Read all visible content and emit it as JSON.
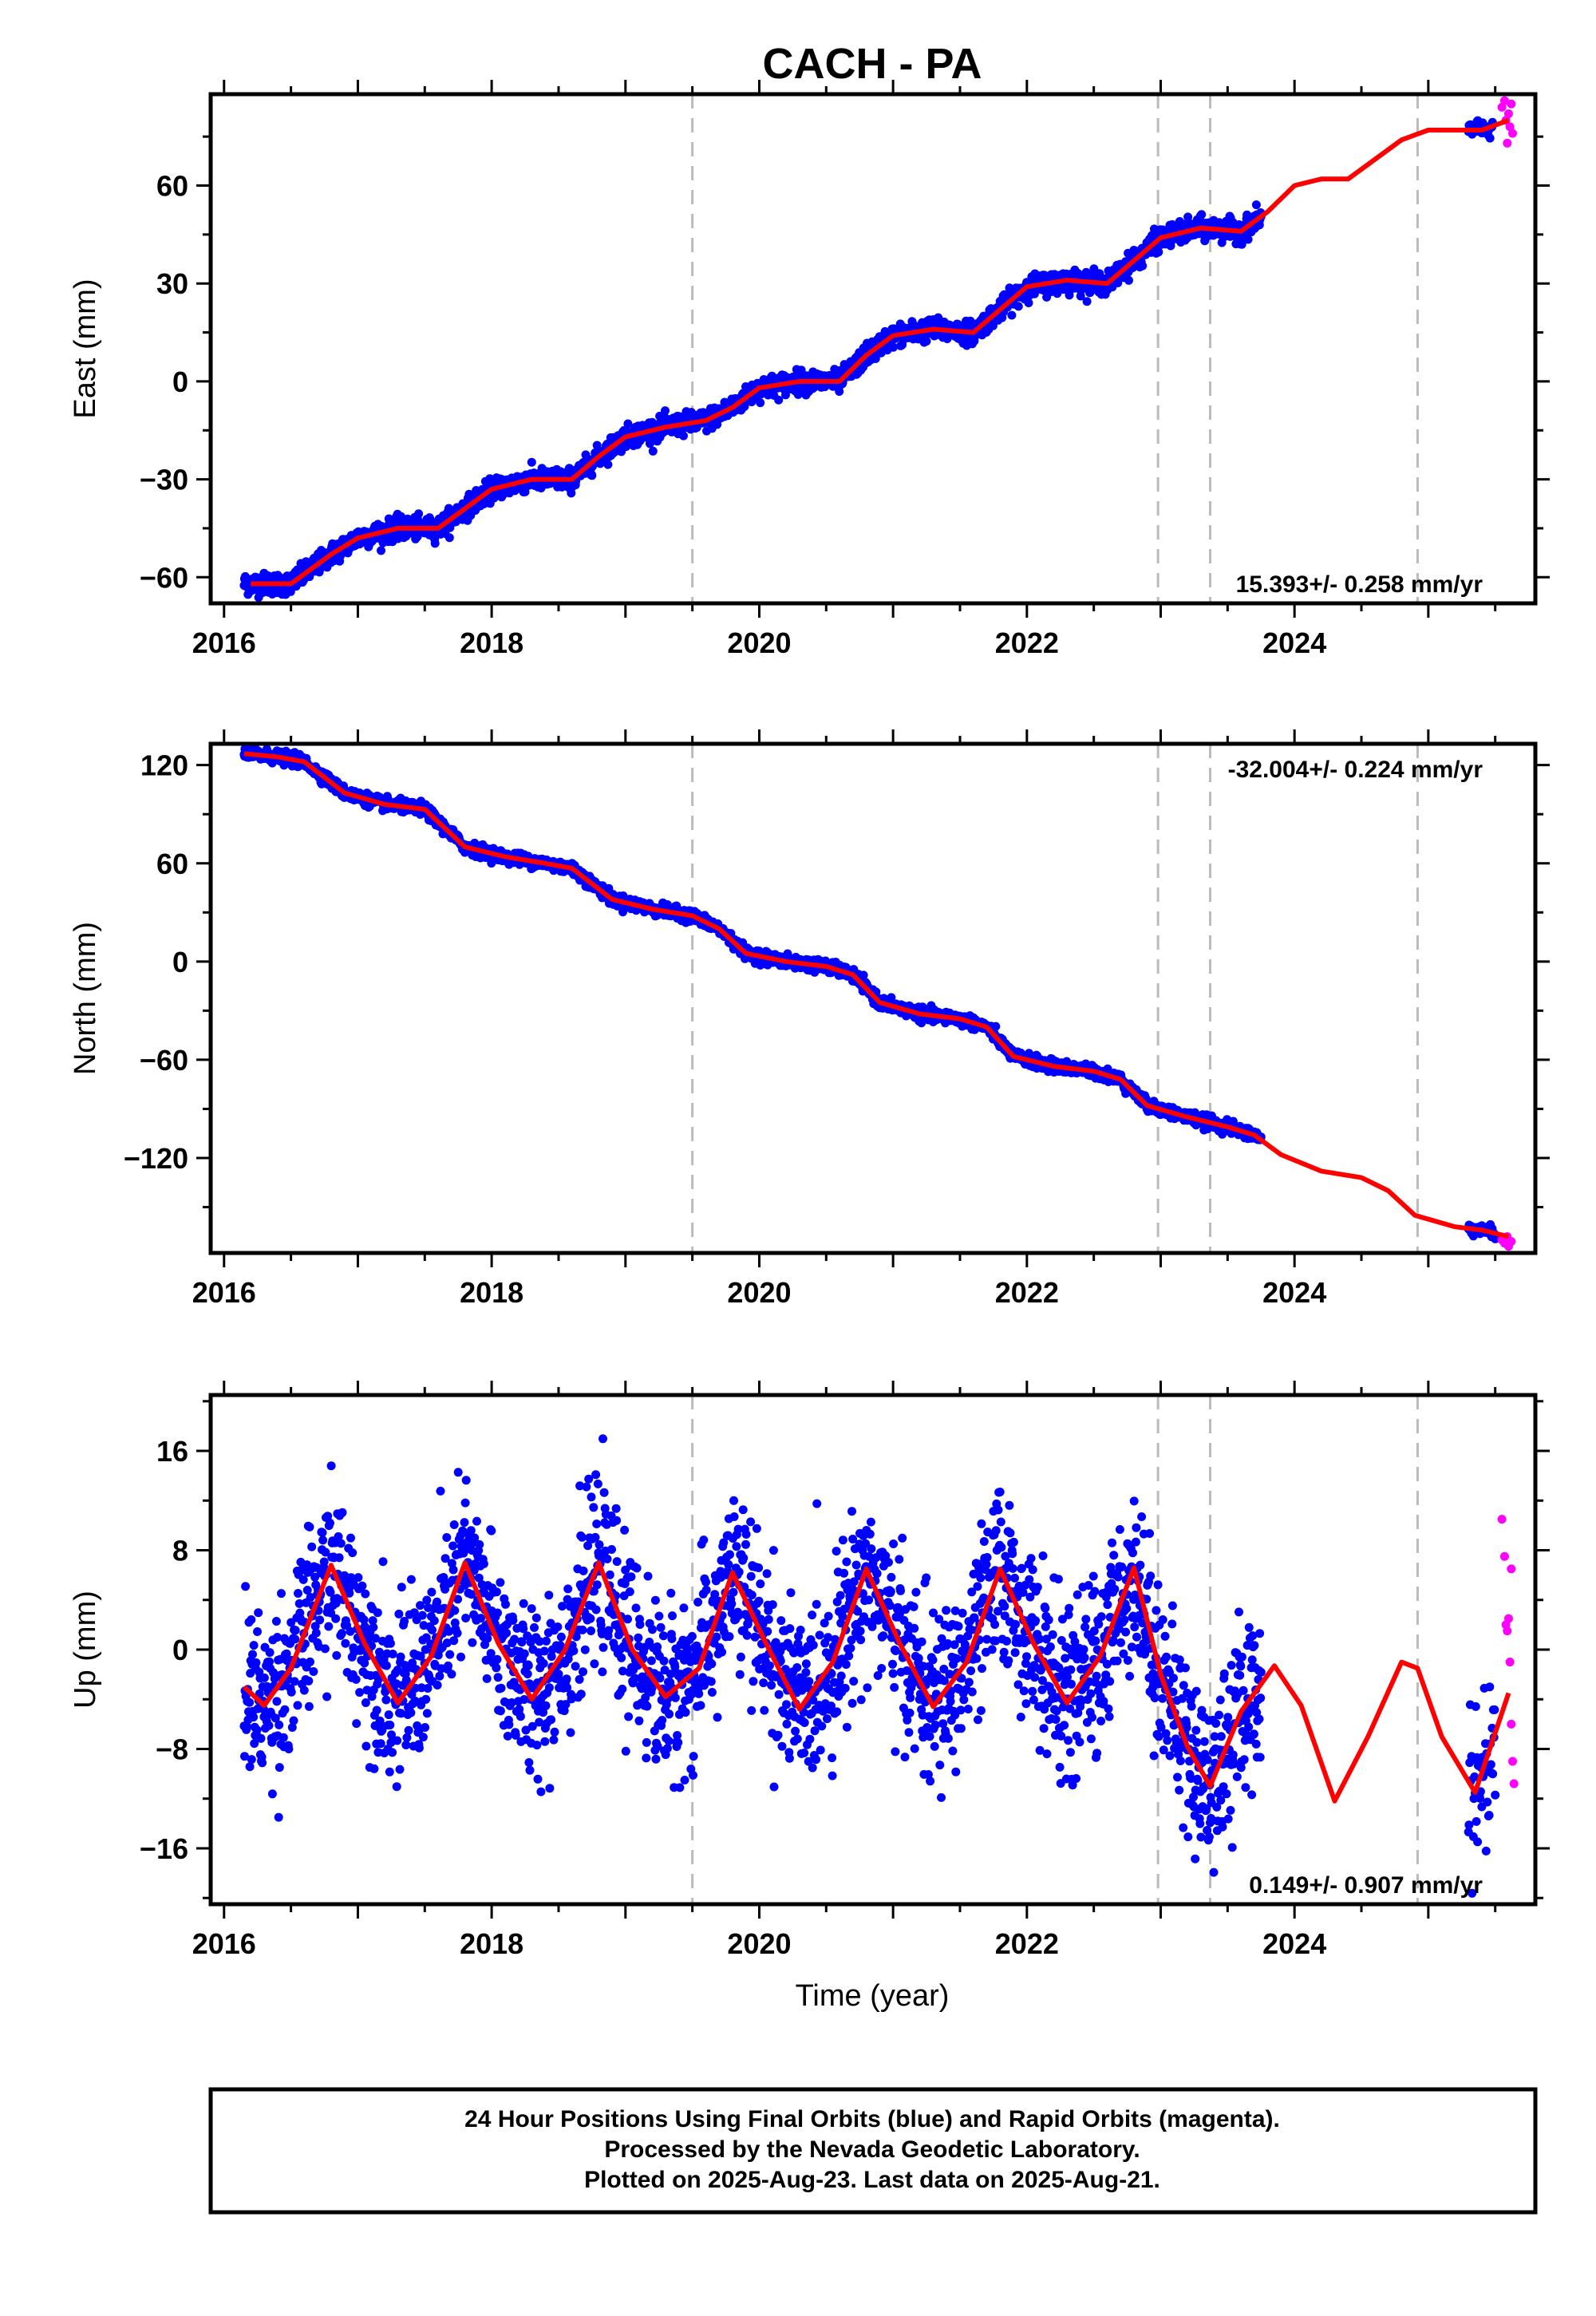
{
  "title": "CACH - PA",
  "xlabel": "Time (year)",
  "footer": {
    "line1": "24 Hour Positions Using Final Orbits (blue) and Rapid Orbits (magenta).",
    "line2": "Processed by the Nevada Geodetic Laboratory.",
    "line3": "Plotted on 2025-Aug-23. Last data on 2025-Aug-21."
  },
  "colors": {
    "final": "#0000ff",
    "rapid": "#ff00ff",
    "model": "#ff0000",
    "break_lines": "#bbbbbb"
  },
  "chart_data": [
    {
      "type": "scatter",
      "name": "east",
      "ylabel": "East (mm)",
      "xlim": [
        2015.9,
        2025.8
      ],
      "ylim": [
        -68,
        88
      ],
      "xticks": [
        2016,
        2018,
        2020,
        2022,
        2024
      ],
      "xtick_labels": [
        "2016",
        "2018",
        "2020",
        "2022",
        "2024"
      ],
      "yticks": [
        -60,
        -30,
        0,
        30,
        60
      ],
      "ytick_labels": [
        "−60",
        "−30",
        "0",
        "30",
        "60"
      ],
      "rate_label": "15.393+/- 0.258 mm/yr",
      "rate_position": "bottom-right",
      "break_lines": [
        2019.5,
        2022.98,
        2023.37,
        2024.92
      ],
      "model": {
        "x": [
          2016.2,
          2016.5,
          2016.8,
          2017.0,
          2017.3,
          2017.6,
          2017.8,
          2018.0,
          2018.3,
          2018.6,
          2018.8,
          2019.0,
          2019.3,
          2019.6,
          2019.8,
          2020.0,
          2020.3,
          2020.6,
          2020.8,
          2021.0,
          2021.3,
          2021.6,
          2021.8,
          2022.0,
          2022.3,
          2022.6,
          2022.8,
          2023.0,
          2023.3,
          2023.6,
          2023.8,
          2024.0,
          2024.2,
          2024.4,
          2024.6,
          2024.8,
          2025.0,
          2025.2,
          2025.4,
          2025.6
        ],
        "y": [
          -62,
          -62,
          -53,
          -48,
          -45,
          -45,
          -39,
          -33,
          -30,
          -30,
          -23,
          -17,
          -14,
          -12,
          -8,
          -2,
          0,
          0,
          8,
          14,
          16,
          15,
          22,
          29,
          31,
          30,
          37,
          44,
          47,
          46,
          52,
          60,
          62,
          62,
          68,
          74,
          77,
          77,
          77,
          80
        ]
      },
      "final_series": {
        "x_range": [
          2016.15,
          2023.75
        ],
        "count": 2600,
        "noise": 1.6,
        "extra_x_range": [
          2025.3,
          2025.48
        ],
        "extra_count": 40
      },
      "rapid_points": [
        {
          "x": 2025.55,
          "y": 84
        },
        {
          "x": 2025.57,
          "y": 86
        },
        {
          "x": 2025.58,
          "y": 80
        },
        {
          "x": 2025.59,
          "y": 73
        },
        {
          "x": 2025.6,
          "y": 82
        },
        {
          "x": 2025.61,
          "y": 78
        },
        {
          "x": 2025.62,
          "y": 85
        },
        {
          "x": 2025.63,
          "y": 76
        }
      ]
    },
    {
      "type": "scatter",
      "name": "north",
      "ylabel": "North (mm)",
      "xlim": [
        2015.9,
        2025.8
      ],
      "ylim": [
        -178,
        133
      ],
      "xticks": [
        2016,
        2018,
        2020,
        2022,
        2024
      ],
      "xtick_labels": [
        "2016",
        "2018",
        "2020",
        "2022",
        "2024"
      ],
      "yticks": [
        -120,
        -60,
        0,
        60,
        120
      ],
      "ytick_labels": [
        "−120",
        "−60",
        "0",
        "60",
        "120"
      ],
      "rate_label": "-32.004+/- 0.224 mm/yr",
      "rate_position": "top-right",
      "break_lines": [
        2019.5,
        2022.98,
        2023.37,
        2024.92
      ],
      "model": {
        "x": [
          2016.15,
          2016.4,
          2016.6,
          2016.9,
          2017.2,
          2017.5,
          2017.8,
          2018.1,
          2018.4,
          2018.6,
          2018.9,
          2019.2,
          2019.5,
          2019.7,
          2019.9,
          2020.2,
          2020.5,
          2020.7,
          2020.9,
          2021.2,
          2021.5,
          2021.7,
          2021.9,
          2022.2,
          2022.5,
          2022.7,
          2022.9,
          2023.2,
          2023.5,
          2023.7,
          2023.9,
          2024.2,
          2024.5,
          2024.7,
          2024.9,
          2025.2,
          2025.4,
          2025.6
        ],
        "y": [
          127,
          125,
          122,
          103,
          96,
          93,
          70,
          64,
          60,
          57,
          38,
          32,
          28,
          20,
          5,
          0,
          -3,
          -8,
          -25,
          -32,
          -35,
          -40,
          -58,
          -64,
          -67,
          -72,
          -88,
          -95,
          -101,
          -106,
          -118,
          -128,
          -132,
          -140,
          -155,
          -162,
          -164,
          -168
        ]
      },
      "final_series": {
        "x_range": [
          2016.15,
          2023.75
        ],
        "count": 2600,
        "noise": 1.8,
        "extra_x_range": [
          2025.3,
          2025.5
        ],
        "extra_count": 45
      },
      "rapid_points": [
        {
          "x": 2025.55,
          "y": -170
        },
        {
          "x": 2025.57,
          "y": -172
        },
        {
          "x": 2025.59,
          "y": -168
        },
        {
          "x": 2025.6,
          "y": -174
        },
        {
          "x": 2025.62,
          "y": -171
        }
      ]
    },
    {
      "type": "scatter",
      "name": "up",
      "ylabel": "Up (mm)",
      "xlim": [
        2015.9,
        2025.8
      ],
      "ylim": [
        -20.5,
        20.5
      ],
      "xticks": [
        2016,
        2018,
        2020,
        2022,
        2024
      ],
      "xtick_labels": [
        "2016",
        "2018",
        "2020",
        "2022",
        "2024"
      ],
      "yticks": [
        -16,
        -8,
        0,
        8,
        16
      ],
      "ytick_labels": [
        "−16",
        "−8",
        "0",
        "8",
        "16"
      ],
      "rate_label": "0.149+/- 0.907 mm/yr",
      "rate_position": "bottom-right",
      "break_lines": [
        2019.5,
        2022.98,
        2023.37,
        2024.92
      ],
      "model": {
        "x": [
          2016.15,
          2016.3,
          2016.5,
          2016.8,
          2017.05,
          2017.3,
          2017.55,
          2017.8,
          2018.05,
          2018.3,
          2018.55,
          2018.8,
          2019.05,
          2019.3,
          2019.55,
          2019.8,
          2020.05,
          2020.3,
          2020.55,
          2020.8,
          2021.05,
          2021.3,
          2021.55,
          2021.8,
          2022.05,
          2022.3,
          2022.55,
          2022.8,
          2023.0,
          2023.2,
          2023.37,
          2023.6,
          2023.85,
          2024.05,
          2024.3,
          2024.55,
          2024.8,
          2024.92,
          2025.1,
          2025.35,
          2025.6
        ],
        "y": [
          -3.0,
          -4.5,
          -1.5,
          6.8,
          0.5,
          -4.3,
          -0.5,
          7.0,
          0.5,
          -4.0,
          0.0,
          7.0,
          0.0,
          -3.8,
          -1.5,
          6.2,
          0.5,
          -4.8,
          -1.0,
          6.5,
          0.5,
          -4.6,
          -1.0,
          6.5,
          0.5,
          -4.3,
          -0.5,
          6.6,
          -2.0,
          -7.8,
          -11.0,
          -5.0,
          -1.3,
          -4.5,
          -12.2,
          -7.0,
          -1.0,
          -1.5,
          -7.0,
          -11.5,
          -3.5
        ]
      },
      "final_series": {
        "x_range": [
          2016.15,
          2023.75
        ],
        "count": 2300,
        "noise": 3.4,
        "extra_x_range": [
          2025.3,
          2025.5
        ],
        "extra_count": 45
      },
      "rapid_points": [
        {
          "x": 2025.55,
          "y": 10.5
        },
        {
          "x": 2025.57,
          "y": 7.5
        },
        {
          "x": 2025.58,
          "y": 2.0
        },
        {
          "x": 2025.59,
          "y": 1.5
        },
        {
          "x": 2025.6,
          "y": 2.5
        },
        {
          "x": 2025.61,
          "y": -1.0
        },
        {
          "x": 2025.62,
          "y": -6.0
        },
        {
          "x": 2025.63,
          "y": -9.0
        },
        {
          "x": 2025.64,
          "y": -10.8
        },
        {
          "x": 2025.62,
          "y": 6.5
        }
      ]
    }
  ]
}
